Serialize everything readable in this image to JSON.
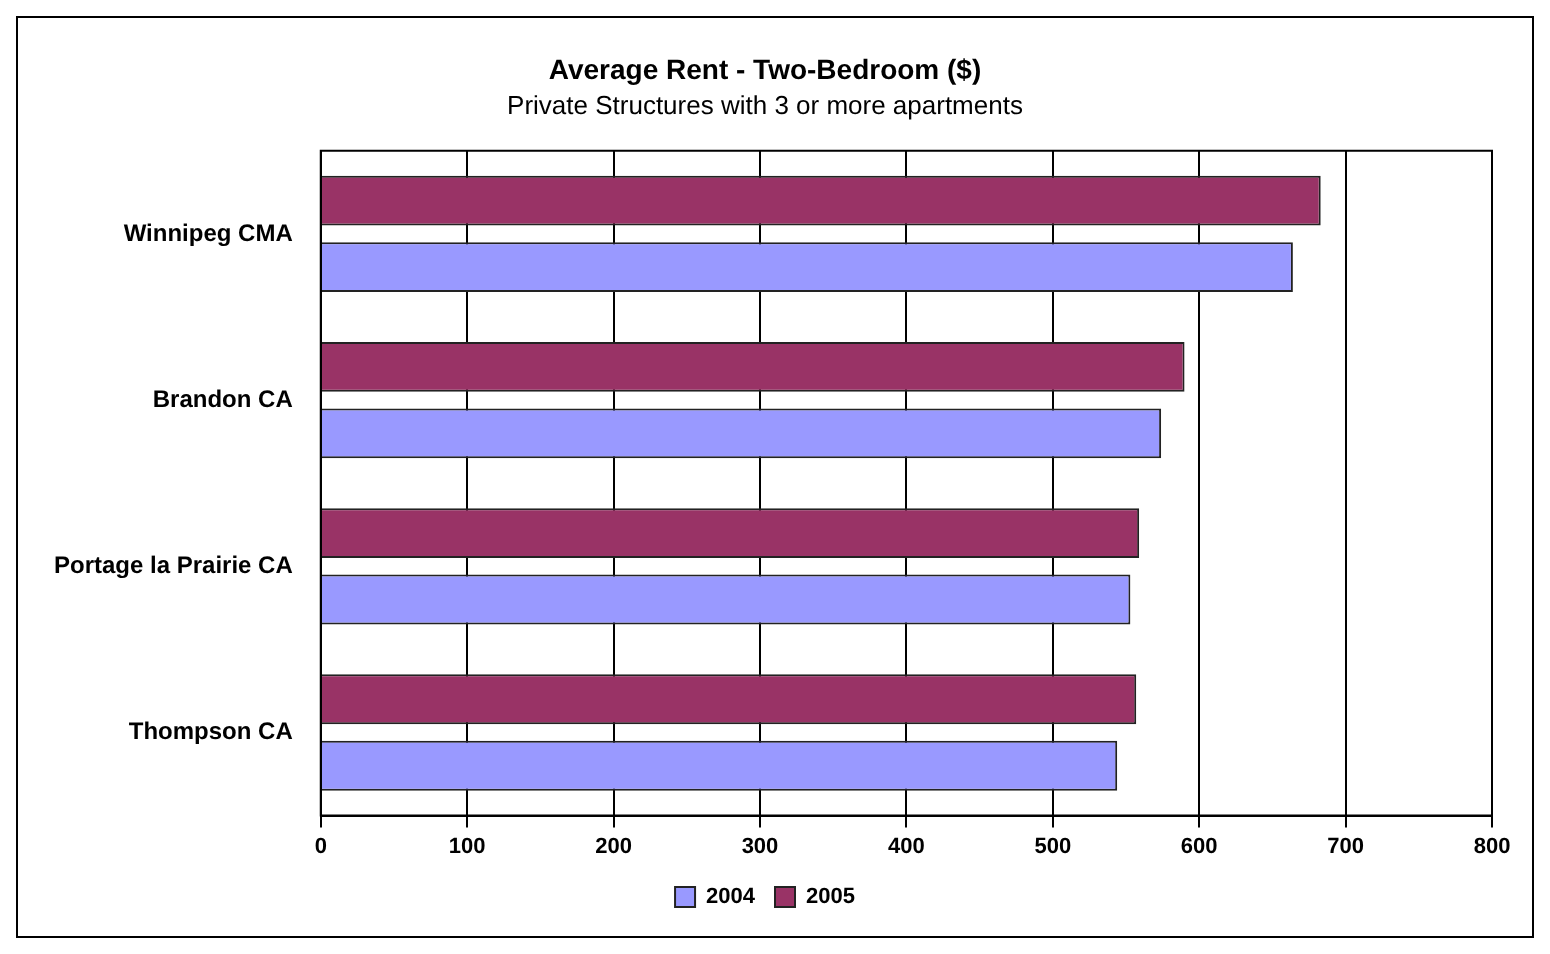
{
  "chart_data": {
    "type": "bar",
    "orientation": "horizontal",
    "title": "Average Rent - Two-Bedroom ($)",
    "subtitle": "Private Structures with 3 or more apartments",
    "categories": [
      "Winnipeg CMA",
      "Brandon CA",
      "Portage la Prairie CA",
      "Thompson CA"
    ],
    "series": [
      {
        "name": "2004",
        "color": "#9999ff",
        "values": [
          664,
          574,
          553,
          544
        ]
      },
      {
        "name": "2005",
        "color": "#993366",
        "values": [
          683,
          590,
          559,
          557
        ]
      }
    ],
    "xlim": [
      0,
      800
    ],
    "xticks": [
      0,
      100,
      200,
      300,
      400,
      500,
      600,
      700,
      800
    ],
    "grid": "x",
    "legend": "bottom"
  }
}
